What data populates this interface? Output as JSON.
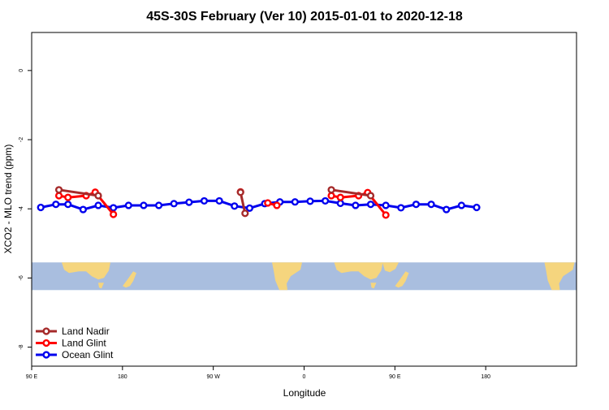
{
  "chart_data": {
    "type": "line",
    "title": "45S-30S February (Ver 10)   2015-01-01 to 2020-12-18",
    "xlabel": "Longitude",
    "ylabel": "XCO2 - MLO trend (ppm)",
    "xlim": [
      60,
      240
    ],
    "ylim": [
      -8.55,
      1.1
    ],
    "x_ticks": [
      {
        "value": 60,
        "label": "90 E"
      },
      {
        "value": 90,
        "label": "180"
      },
      {
        "value": 120,
        "label": "90 W"
      },
      {
        "value": 150,
        "label": "0"
      },
      {
        "value": 180,
        "label": "90 E"
      },
      {
        "value": 210,
        "label": "180"
      }
    ],
    "y_ticks": [
      {
        "value": 0,
        "label": "0"
      },
      {
        "value": -2,
        "label": "-2"
      },
      {
        "value": -4,
        "label": "-4"
      },
      {
        "value": -6,
        "label": "-6"
      },
      {
        "value": -8,
        "label": "-8"
      }
    ],
    "grid": false,
    "legend_position": "bottom-left",
    "map_strip": {
      "y_range": [
        -6.35,
        -5.55
      ],
      "ocean_color": "#a9bedf",
      "land_color": "#f5d57e"
    },
    "series": [
      {
        "name": "Land Nadir",
        "color": "#a52a2a",
        "points": [
          {
            "x": 69,
            "y": -3.45
          },
          {
            "x": 82,
            "y": -3.62
          },
          {
            "x": 129,
            "y": -3.52
          },
          {
            "x": 130.5,
            "y": -4.13
          },
          {
            "x": 159,
            "y": -3.45
          },
          {
            "x": 172,
            "y": -3.62
          }
        ]
      },
      {
        "name": "Land Glint",
        "color": "#ff0000",
        "points": [
          {
            "x": 69,
            "y": -3.62
          },
          {
            "x": 72,
            "y": -3.67
          },
          {
            "x": 78,
            "y": -3.62
          },
          {
            "x": 81,
            "y": -3.52
          },
          {
            "x": 87,
            "y": -4.16
          },
          {
            "x": 138,
            "y": -3.83
          },
          {
            "x": 141,
            "y": -3.9
          },
          {
            "x": 129,
            "y": -3.51
          },
          {
            "x": 159,
            "y": -3.62
          },
          {
            "x": 162,
            "y": -3.67
          },
          {
            "x": 168,
            "y": -3.62
          },
          {
            "x": 171,
            "y": -3.53
          },
          {
            "x": 177,
            "y": -4.18
          }
        ]
      },
      {
        "name": "Ocean Glint",
        "color": "#0000ee",
        "points": [
          {
            "x": 63,
            "y": -3.96
          },
          {
            "x": 68,
            "y": -3.87
          },
          {
            "x": 72,
            "y": -3.87
          },
          {
            "x": 77,
            "y": -4.02
          },
          {
            "x": 82,
            "y": -3.9
          },
          {
            "x": 87,
            "y": -3.97
          },
          {
            "x": 92,
            "y": -3.9
          },
          {
            "x": 97,
            "y": -3.9
          },
          {
            "x": 102,
            "y": -3.9
          },
          {
            "x": 107,
            "y": -3.85
          },
          {
            "x": 112,
            "y": -3.81
          },
          {
            "x": 117,
            "y": -3.77
          },
          {
            "x": 122,
            "y": -3.77
          },
          {
            "x": 127,
            "y": -3.92
          },
          {
            "x": 132,
            "y": -3.98
          },
          {
            "x": 137,
            "y": -3.85
          },
          {
            "x": 142,
            "y": -3.8
          },
          {
            "x": 147,
            "y": -3.8
          },
          {
            "x": 152,
            "y": -3.78
          },
          {
            "x": 157,
            "y": -3.77
          },
          {
            "x": 162,
            "y": -3.84
          },
          {
            "x": 167,
            "y": -3.9
          },
          {
            "x": 172,
            "y": -3.87
          },
          {
            "x": 177,
            "y": -3.9
          },
          {
            "x": 182,
            "y": -3.97
          },
          {
            "x": 187,
            "y": -3.87
          },
          {
            "x": 192,
            "y": -3.87
          },
          {
            "x": 197,
            "y": -4.02
          },
          {
            "x": 202,
            "y": -3.9
          },
          {
            "x": 207,
            "y": -3.96
          }
        ]
      }
    ]
  }
}
